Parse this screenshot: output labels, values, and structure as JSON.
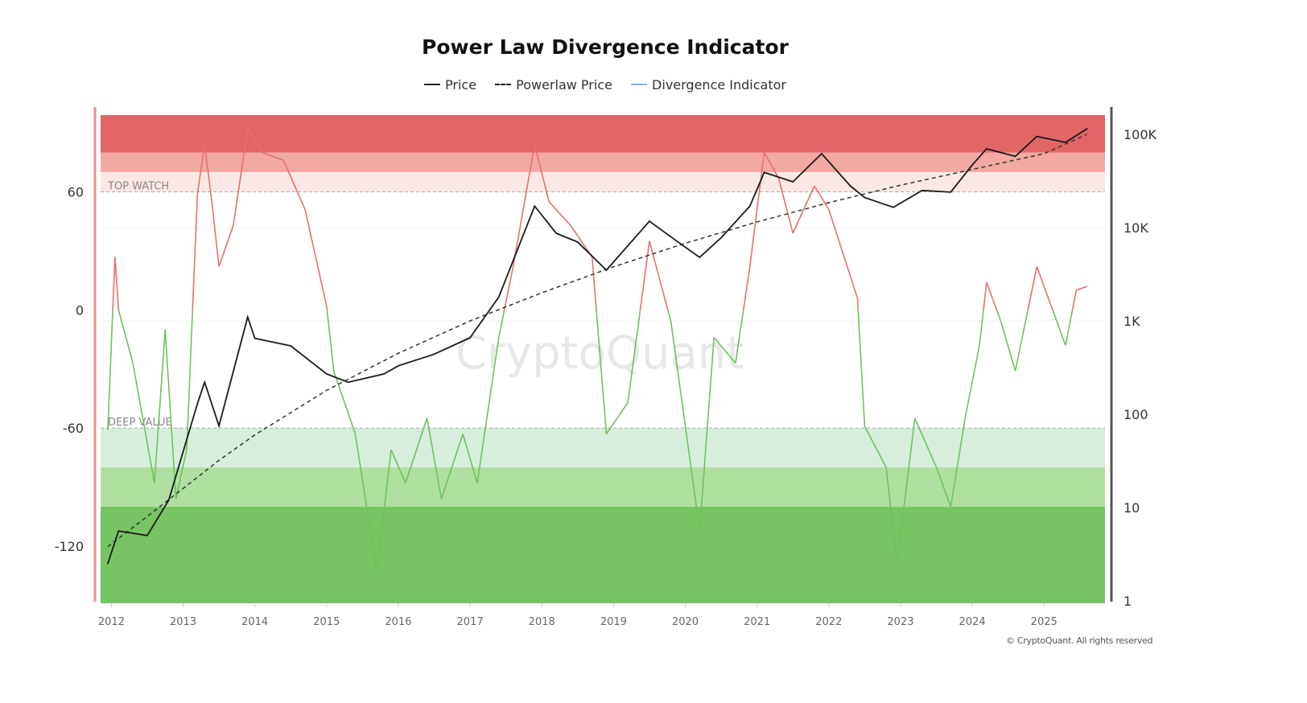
{
  "chart_data": {
    "type": "line",
    "title": "Power Law Divergence Indicator",
    "legend": [
      {
        "label": "Price",
        "style": "solid",
        "color": "#222222"
      },
      {
        "label": "Powerlaw Price",
        "style": "dashed",
        "color": "#222222"
      },
      {
        "label": "Divergence Indicator",
        "style": "solid",
        "color": "#8fa8f5"
      }
    ],
    "legend_placement": "top-center",
    "x_ticks": [
      "2012",
      "2013",
      "2014",
      "2015",
      "2016",
      "2017",
      "2018",
      "2019",
      "2020",
      "2021",
      "2022",
      "2023",
      "2024",
      "2025"
    ],
    "xlim": [
      2011.85,
      2025.85
    ],
    "left_axis": {
      "ticks": [
        "60",
        "0",
        "-60",
        "-120"
      ],
      "tick_values": [
        60,
        0,
        -60,
        -120
      ],
      "ylim": [
        -149,
        99
      ]
    },
    "right_axis": {
      "scale": "log",
      "ticks": [
        "100K",
        "10K",
        "1K",
        "100",
        "10",
        "1"
      ],
      "tick_values": [
        100000,
        10000,
        1000,
        100,
        10,
        1
      ],
      "ylim": [
        0.94,
        161000
      ]
    },
    "zones": [
      {
        "from": 80,
        "to": 99,
        "color": "#e26666"
      },
      {
        "from": 70,
        "to": 80,
        "color": "#f2a8a3"
      },
      {
        "from": 60,
        "to": 70,
        "color": "#fbe8e5",
        "label": "TOP WATCH"
      },
      {
        "from": -80,
        "to": -60,
        "color": "#d8eedd",
        "label": "DEEP VALUE"
      },
      {
        "from": -100,
        "to": -80,
        "color": "#b0e0a0"
      },
      {
        "from": -149,
        "to": -100,
        "color": "#77c462"
      }
    ],
    "price": {
      "x": [
        2011.95,
        2012.1,
        2012.5,
        2012.8,
        2013.2,
        2013.3,
        2013.5,
        2013.9,
        2014.0,
        2014.5,
        2015.0,
        2015.3,
        2015.8,
        2016.0,
        2016.5,
        2017.0,
        2017.4,
        2017.9,
        2018.2,
        2018.5,
        2018.9,
        2019.5,
        2019.9,
        2020.2,
        2020.5,
        2020.9,
        2021.1,
        2021.5,
        2021.9,
        2022.3,
        2022.5,
        2022.9,
        2023.3,
        2023.7,
        2024.0,
        2024.2,
        2024.6,
        2024.9,
        2025.3,
        2025.6
      ],
      "y": [
        2.5,
        5.6,
        5,
        12,
        130,
        220,
        75,
        1100,
        650,
        540,
        270,
        220,
        270,
        330,
        440,
        660,
        1800,
        17000,
        8700,
        7000,
        3500,
        11700,
        7000,
        4800,
        7800,
        17000,
        39000,
        31000,
        62000,
        28000,
        21000,
        16500,
        25000,
        24000,
        47000,
        70000,
        58000,
        95000,
        82000,
        115000
      ]
    },
    "powerlaw_price": {
      "x": [
        2011.95,
        2012.5,
        2013,
        2013.5,
        2014,
        2015,
        2016,
        2017,
        2018,
        2019,
        2020,
        2021,
        2022,
        2023,
        2024,
        2025,
        2025.6
      ],
      "y": [
        3.8,
        8,
        16,
        32,
        60,
        180,
        450,
        1000,
        2000,
        3800,
        6800,
        11500,
        18500,
        28500,
        42000,
        62000,
        100000
      ]
    },
    "divergence": {
      "x": [
        2011.95,
        2012.05,
        2012.1,
        2012.3,
        2012.6,
        2012.75,
        2012.9,
        2013.05,
        2013.2,
        2013.3,
        2013.4,
        2013.5,
        2013.7,
        2013.9,
        2014.1,
        2014.4,
        2014.7,
        2015.0,
        2015.1,
        2015.4,
        2015.7,
        2015.9,
        2016.1,
        2016.4,
        2016.6,
        2016.9,
        2017.1,
        2017.4,
        2017.6,
        2017.9,
        2018.1,
        2018.4,
        2018.7,
        2018.9,
        2019.2,
        2019.5,
        2019.8,
        2020.2,
        2020.4,
        2020.7,
        2020.9,
        2021.1,
        2021.3,
        2021.5,
        2021.8,
        2022.0,
        2022.4,
        2022.5,
        2022.8,
        2022.95,
        2023.2,
        2023.5,
        2023.7,
        2023.9,
        2024.1,
        2024.2,
        2024.4,
        2024.6,
        2024.9,
        2025.1,
        2025.3,
        2025.45,
        2025.6
      ],
      "y": [
        -61,
        27,
        0,
        -27,
        -88,
        -10,
        -96,
        -71,
        59,
        84,
        55,
        22,
        43,
        92,
        80,
        76,
        51,
        2,
        -31,
        -63,
        -133,
        -71,
        -88,
        -55,
        -96,
        -63,
        -88,
        -14,
        22,
        84,
        55,
        43,
        27,
        -63,
        -47,
        35,
        -6,
        -112,
        -14,
        -27,
        22,
        80,
        67,
        39,
        63,
        51,
        6,
        -59,
        -80,
        -129,
        -55,
        -80,
        -100,
        -55,
        -18,
        14,
        -6,
        -31,
        22,
        2,
        -18,
        10,
        12
      ]
    },
    "watermark": "CryptoQuant",
    "footer": "© CryptoQuant. All rights reserved"
  }
}
